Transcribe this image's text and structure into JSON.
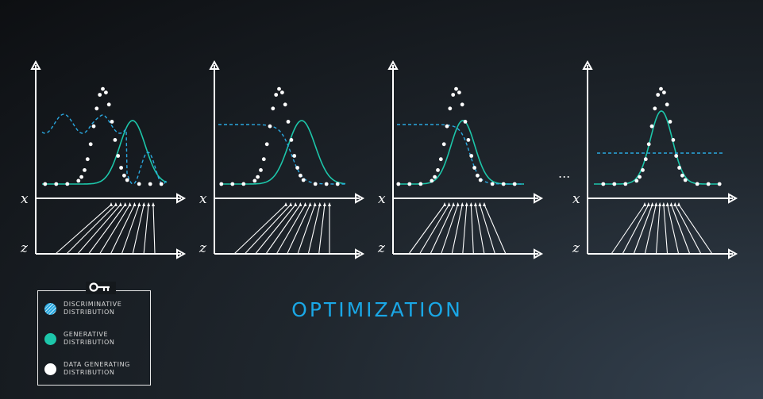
{
  "title": "OPTIMIZATION",
  "ellipsis": "...",
  "axis_labels": {
    "x": "x",
    "z": "z"
  },
  "legend": {
    "items": [
      {
        "label": "DISCRIMINATIVE\nDISTRIBUTION",
        "icon": "striped-blue-circle"
      },
      {
        "label": "GENERATIVE\nDISTRIBUTION",
        "icon": "teal-circle"
      },
      {
        "label": "DATA GENERATING\nDISTRIBUTION",
        "icon": "white-circle"
      }
    ],
    "key_icon": "key-icon"
  },
  "colors": {
    "discriminative": "#2aa8e0",
    "generative": "#1dc6aa",
    "data": "#ffffff",
    "title": "#1aa7e6",
    "axes": "#ffffff"
  }
}
